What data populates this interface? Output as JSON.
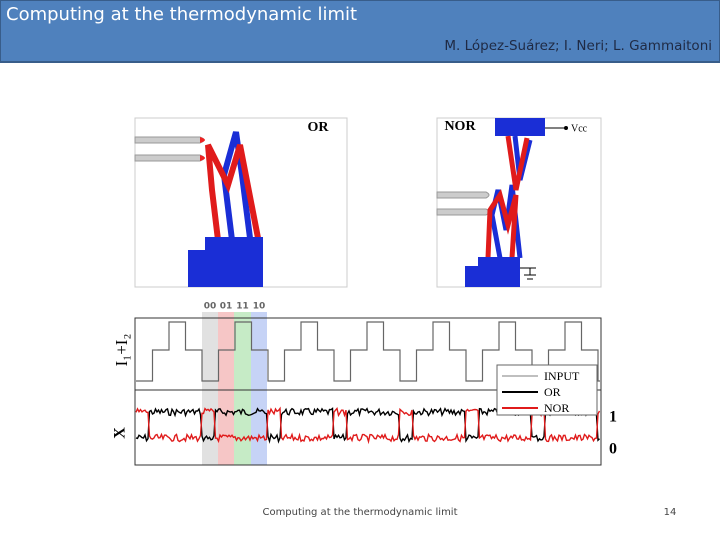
{
  "header": {
    "title": "Computing at the thermodynamic limit",
    "authors": "M. López-Suárez; I. Neri; L. Gammaitoni"
  },
  "figure": {
    "panel_or_label": "OR",
    "panel_nor_label": "NOR",
    "vcc_label": "Vcc",
    "input_states": [
      "00",
      "01",
      "11",
      "10"
    ],
    "y_label_top": "I₁+I₂",
    "y_label_bottom": "X",
    "legend": [
      "INPUT",
      "OR",
      "NOR"
    ],
    "levels": [
      "1",
      "0"
    ]
  },
  "footer": {
    "text": "Computing at the thermodynamic limit",
    "page": "14"
  }
}
